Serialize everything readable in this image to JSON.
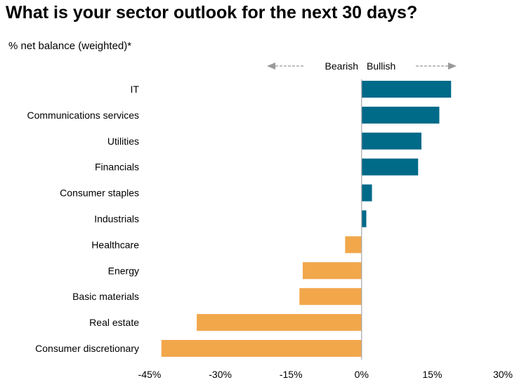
{
  "chart_data": {
    "type": "bar",
    "orientation": "horizontal",
    "title": "What is your sector outlook for the next 30 days?",
    "subtitle": "% net balance (weighted)*",
    "direction_labels": {
      "negative": "Bearish",
      "positive": "Bullish"
    },
    "categories": [
      "IT",
      "Communications services",
      "Utilities",
      "Financials",
      "Consumer staples",
      "Industrials",
      "Healthcare",
      "Energy",
      "Basic materials",
      "Real estate",
      "Consumer discretionary"
    ],
    "values": [
      19,
      16.5,
      12.7,
      12,
      2.2,
      1,
      -3.5,
      -12.5,
      -13.2,
      -35,
      -42.5
    ],
    "xlim": [
      -45,
      30
    ],
    "x_ticks": [
      -45,
      -30,
      -15,
      0,
      15,
      30
    ],
    "x_tick_labels": [
      "-45%",
      "-30%",
      "-15%",
      "0%",
      "15%",
      "30%"
    ],
    "grid": false,
    "colors": {
      "positive": "#006a89",
      "negative": "#f2a74b",
      "axis": "#a6a6a6",
      "arrow": "#999999"
    }
  }
}
